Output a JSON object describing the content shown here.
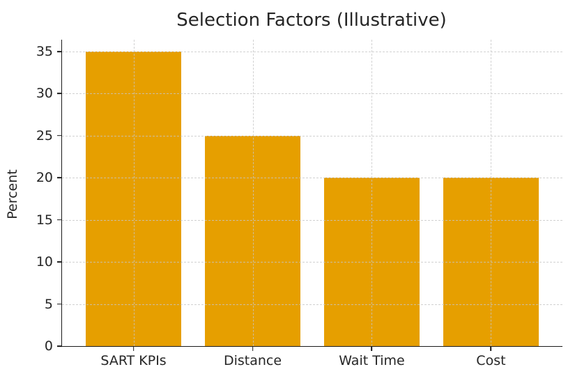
{
  "chart_data": {
    "type": "bar",
    "title": "Selection Factors (Illustrative)",
    "categories": [
      "SART KPIs",
      "Distance",
      "Wait Time",
      "Cost"
    ],
    "values": [
      35,
      25,
      20,
      20
    ],
    "xlabel": "",
    "ylabel": "Percent",
    "ylim": [
      0,
      36.4
    ],
    "yticks": [
      0,
      5,
      10,
      15,
      20,
      25,
      30,
      35
    ],
    "legend": "none",
    "grid": {
      "style": "dashed",
      "horizontal_at_yticks": true,
      "vertical_at_category_centers": true
    },
    "colors": {
      "bar_fill": "#E69F00",
      "gridline": "#C6C6C6",
      "spine": "#1A1A1A",
      "text": "#262626",
      "background": "#FFFFFF"
    }
  }
}
